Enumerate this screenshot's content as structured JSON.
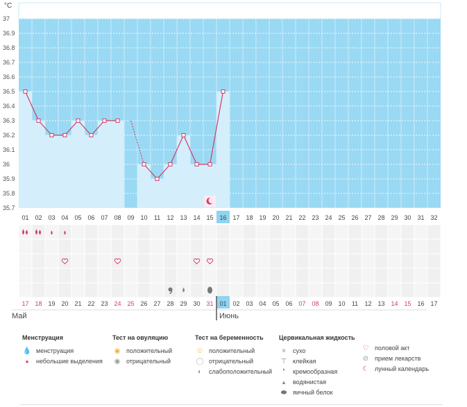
{
  "colors": {
    "plot_bg": "#9ad9f3",
    "bar_fill": "#d4effb",
    "line": "#d33a6a",
    "grid_cell": "#f2f2f2",
    "day_red": "#d23b6b",
    "day_normal": "#444444",
    "today_bg": "#8fd4f0",
    "header_border": "#c9e9f7"
  },
  "chart_data": {
    "type": "line",
    "unit": "°C",
    "ylim": [
      35.7,
      37.0
    ],
    "y_ticks": [
      "37",
      "36.9",
      "36.8",
      "36.7",
      "36.6",
      "36.5",
      "36.4",
      "36.3",
      "36.2",
      "36.1",
      "36",
      "35.9",
      "35.8",
      "35.7"
    ],
    "cycle_days": [
      "01",
      "02",
      "03",
      "04",
      "05",
      "06",
      "07",
      "08",
      "09",
      "10",
      "11",
      "12",
      "13",
      "14",
      "15",
      "16",
      "17",
      "18",
      "19",
      "20",
      "21",
      "22",
      "23",
      "24",
      "25",
      "26",
      "27",
      "28",
      "29",
      "30",
      "31",
      "32"
    ],
    "temperatures": [
      36.5,
      36.3,
      36.2,
      36.2,
      36.3,
      36.2,
      36.3,
      36.3,
      null,
      36.0,
      35.9,
      36.0,
      36.2,
      36.0,
      36.0,
      36.5
    ],
    "today_index": 15,
    "grid": true
  },
  "dates": {
    "labels": [
      "17",
      "18",
      "19",
      "20",
      "21",
      "22",
      "23",
      "24",
      "25",
      "26",
      "27",
      "28",
      "29",
      "30",
      "31",
      "01",
      "02",
      "03",
      "04",
      "05",
      "06",
      "07",
      "08",
      "09",
      "10",
      "11",
      "12",
      "13",
      "14",
      "15",
      "16",
      "17"
    ],
    "red": [
      true,
      true,
      false,
      false,
      false,
      false,
      false,
      true,
      true,
      false,
      false,
      false,
      false,
      false,
      true,
      false,
      false,
      false,
      false,
      false,
      false,
      true,
      true,
      false,
      false,
      false,
      false,
      false,
      true,
      true,
      false,
      false
    ],
    "month_may": "Май",
    "month_june": "Июнь"
  },
  "markers": {
    "menstruation": [
      0,
      1
    ],
    "light_spotting": [
      2,
      3
    ],
    "intercourse": [
      3,
      7,
      13,
      14
    ],
    "fluid_cream": [
      11
    ],
    "fluid_watery": [
      12
    ],
    "fluid_eggwhite": [
      14
    ],
    "moon": [
      14
    ]
  },
  "legend": {
    "menstr": {
      "title": "Менструация",
      "items": [
        {
          "icon": "menstruation-icon",
          "label": "менструация"
        },
        {
          "icon": "light-spotting-icon",
          "label": "небольшие выделения"
        }
      ]
    },
    "ovulation": {
      "title": "Тест на овуляцию",
      "items": [
        {
          "icon": "positive-ovulation-icon",
          "label": "положительный"
        },
        {
          "icon": "negative-ovulation-icon",
          "label": "отрицательный"
        }
      ]
    },
    "pregnancy": {
      "title": "Тест на беременность",
      "items": [
        {
          "icon": "positive-pregnancy-icon",
          "label": "положительный"
        },
        {
          "icon": "negative-pregnancy-icon",
          "label": "отрицательный"
        },
        {
          "icon": "weak-positive-pregnancy-icon",
          "label": "слабоположительный"
        }
      ]
    },
    "fluid": {
      "title": "Цервикальная жидкость",
      "items": [
        {
          "icon": "dry-icon",
          "label": "сухо"
        },
        {
          "icon": "sticky-icon",
          "label": "клейкая"
        },
        {
          "icon": "creamy-icon",
          "label": "кремообразная"
        },
        {
          "icon": "watery-icon",
          "label": "водянистая"
        },
        {
          "icon": "egg-white-icon",
          "label": "яичный белок"
        }
      ]
    },
    "other": {
      "items": [
        {
          "icon": "intercourse-icon",
          "label": "половой акт"
        },
        {
          "icon": "medication-icon",
          "label": "прием лекарств"
        },
        {
          "icon": "moon-calendar-icon",
          "label": "лунный календарь"
        }
      ]
    }
  }
}
